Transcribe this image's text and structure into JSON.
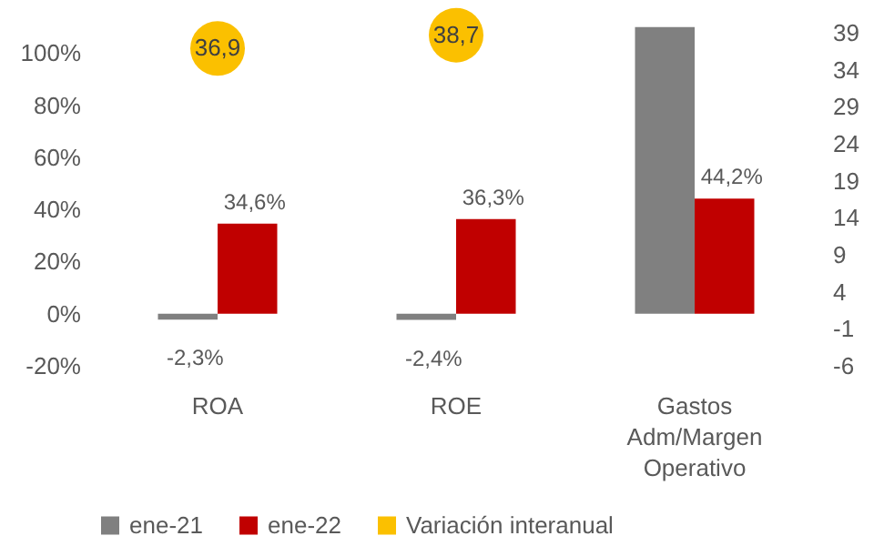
{
  "chart_data": {
    "type": "bar",
    "categories": [
      "ROA",
      "ROE",
      "Gastos Adm/Margen Operativo"
    ],
    "series": [
      {
        "name": "ene-21",
        "color": "#808080",
        "values": [
          -2.3,
          -2.4,
          110
        ],
        "value_labels": [
          "-2,3%",
          "-2,4%",
          null
        ]
      },
      {
        "name": "ene-22",
        "color": "#c00000",
        "values": [
          34.6,
          36.3,
          44.2
        ],
        "value_labels": [
          "34,6%",
          "36,3%",
          "44,2%"
        ]
      },
      {
        "name": "Variación interanual",
        "type": "scatter",
        "axis": "y2",
        "marker": "circle",
        "color": "#fbc000",
        "values": [
          36.9,
          38.7,
          null
        ],
        "value_labels": [
          "36,9",
          "38,7",
          null
        ]
      }
    ],
    "ylim": [
      -20,
      112
    ],
    "yticks": [
      {
        "value": -20,
        "label": "-20%"
      },
      {
        "value": 0,
        "label": "0%"
      },
      {
        "value": 20,
        "label": "20%"
      },
      {
        "value": 40,
        "label": "40%"
      },
      {
        "value": 60,
        "label": "60%"
      },
      {
        "value": 80,
        "label": "80%"
      },
      {
        "value": 100,
        "label": "100%"
      }
    ],
    "y2lim": [
      -6,
      40.5
    ],
    "y2ticks": [
      -6,
      -1,
      4,
      9,
      14,
      19,
      24,
      29,
      34,
      39
    ],
    "legend": "bottom"
  }
}
